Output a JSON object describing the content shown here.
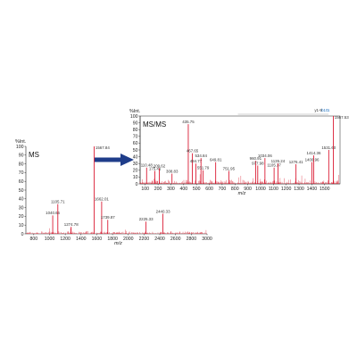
{
  "colors": {
    "peak": "#d6001c",
    "noise": "#e03040",
    "axis": "#222222",
    "arrow": "#1f3d8a",
    "annotation": "#1a6fc0"
  },
  "chart_data": [
    {
      "type": "bar",
      "title": "MS",
      "ylabel": "%Int.",
      "xlabel": "m/z",
      "xlim": [
        700,
        3000
      ],
      "ylim": [
        0,
        100
      ],
      "xticks": [
        800,
        1000,
        1200,
        1400,
        1600,
        1800,
        2000,
        2200,
        2400,
        2600,
        2800,
        3000
      ],
      "yticks": [
        0,
        10,
        20,
        30,
        40,
        50,
        60,
        70,
        80,
        90,
        100
      ],
      "peaks": [
        {
          "x": 1040.66,
          "y": 21,
          "label": "1040.66"
        },
        {
          "x": 1105.71,
          "y": 34,
          "label": "1105.71"
        },
        {
          "x": 1274.78,
          "y": 8,
          "label": "1274.78"
        },
        {
          "x": 1567.84,
          "y": 100,
          "label": "1567.84"
        },
        {
          "x": 1662.01,
          "y": 37,
          "label": "1662.01"
        },
        {
          "x": 1739.87,
          "y": 16,
          "label": "1739.87"
        },
        {
          "x": 2225.33,
          "y": 14,
          "label": "2225.33"
        },
        {
          "x": 2440.33,
          "y": 23,
          "label": "2440.33"
        }
      ]
    },
    {
      "type": "bar",
      "title": "MS/MS",
      "ylabel": "%Int.",
      "xlabel": "m/z",
      "xlim": [
        60,
        1620
      ],
      "ylim": [
        0,
        100
      ],
      "xticks": [
        100,
        200,
        300,
        400,
        500,
        600,
        700,
        800,
        900,
        1000,
        1100,
        1200,
        1300,
        1400,
        1500
      ],
      "yticks": [
        0,
        10,
        20,
        30,
        40,
        50,
        60,
        70,
        80,
        90,
        100
      ],
      "annotations": [
        {
          "text": "y1-9",
          "x": 1450
        },
        {
          "text": "b10",
          "x": 1500
        },
        {
          "text": "1",
          "x": 1530
        }
      ],
      "peaks": [
        {
          "x": 110.48,
          "y": 24,
          "label": "110.48"
        },
        {
          "x": 175.41,
          "y": 19,
          "label": "175.41"
        },
        {
          "x": 209.62,
          "y": 23,
          "label": "209.62"
        },
        {
          "x": 308.83,
          "y": 15,
          "label": "308.83"
        },
        {
          "x": 435.75,
          "y": 88,
          "label": "435.75"
        },
        {
          "x": 467.65,
          "y": 45,
          "label": "467.65"
        },
        {
          "x": 494.77,
          "y": 30,
          "label": "494.77"
        },
        {
          "x": 534.84,
          "y": 38,
          "label": "534.84"
        },
        {
          "x": 551.79,
          "y": 20,
          "label": "551.79"
        },
        {
          "x": 649.81,
          "y": 32,
          "label": "649.81"
        },
        {
          "x": 751.95,
          "y": 19,
          "label": "751.95"
        },
        {
          "x": 960.91,
          "y": 34,
          "label": "960.91"
        },
        {
          "x": 977.98,
          "y": 27,
          "label": "977.98"
        },
        {
          "x": 1034.06,
          "y": 38,
          "label": "1034.06"
        },
        {
          "x": 1105.37,
          "y": 24,
          "label": "1105.37"
        },
        {
          "x": 1135.24,
          "y": 30,
          "label": "1135.24"
        },
        {
          "x": 1276.41,
          "y": 29,
          "label": "1276.41"
        },
        {
          "x": 1414.36,
          "y": 42,
          "label": "1414.36"
        },
        {
          "x": 1400.96,
          "y": 32,
          "label": "1400.96"
        },
        {
          "x": 1531.6,
          "y": 50,
          "label": "1531.60"
        },
        {
          "x": 1567.53,
          "y": 100,
          "label": "1567.53"
        }
      ]
    }
  ]
}
